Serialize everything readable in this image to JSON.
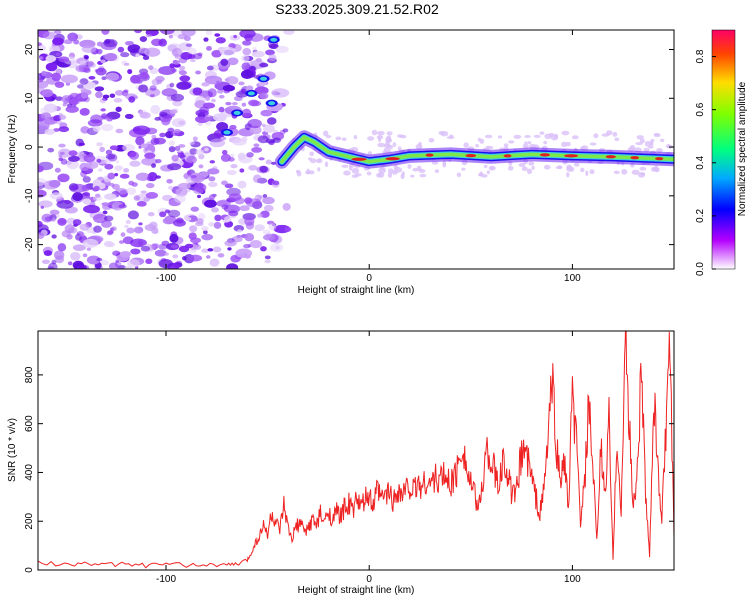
{
  "title": "S233.2025.309.21.52.R02",
  "colors": {
    "snr_line": "#ee2222",
    "axis": "#000000",
    "band_core": "#e02020",
    "band_edge": "#3fd0e0"
  },
  "chart_data": [
    {
      "type": "heatmap",
      "name": "spectrogram",
      "xlabel": "Height of straight line (km)",
      "ylabel": "Frequency (Hz)",
      "xlim": [
        -163,
        150
      ],
      "ylim": [
        -25,
        24
      ],
      "xticks": [
        -100,
        0,
        100
      ],
      "yticks": [
        -20,
        -10,
        0,
        10,
        20
      ],
      "xtick_labels": [
        "-100",
        "0",
        "100"
      ],
      "ytick_labels": [
        "-20",
        "-10",
        "0",
        "10",
        "20"
      ],
      "colorbar": {
        "label": "Normalized spectral amplitude",
        "range": [
          0.0,
          0.9
        ],
        "ticks": [
          0.0,
          0.2,
          0.4,
          0.6,
          0.8
        ],
        "tick_labels": [
          "0.0",
          "0.2",
          "0.4",
          "0.6",
          "0.8"
        ]
      },
      "band_track": {
        "x": [
          -43,
          -37,
          -32,
          -27,
          -20,
          -10,
          0,
          10,
          20,
          40,
          60,
          80,
          100,
          120,
          150
        ],
        "y": [
          -3,
          0,
          2,
          1,
          -1,
          -2,
          -3,
          -2.5,
          -1.8,
          -1.5,
          -2,
          -1.5,
          -1.8,
          -2,
          -2.5
        ]
      }
    },
    {
      "type": "line",
      "name": "snr",
      "xlabel": "Height of straight line (km)",
      "ylabel": "SNR (10 * v/v)",
      "xlim": [
        -163,
        150
      ],
      "ylim": [
        0,
        980
      ],
      "xticks": [
        -100,
        0,
        100
      ],
      "yticks": [
        0,
        200,
        400,
        600,
        800
      ],
      "xtick_labels": [
        "-100",
        "0",
        "100"
      ],
      "ytick_labels": [
        "0",
        "200",
        "400",
        "600",
        "800"
      ],
      "series": [
        {
          "name": "SNR",
          "x": [
            -163,
            -150,
            -140,
            -130,
            -120,
            -110,
            -100,
            -90,
            -80,
            -70,
            -65,
            -60,
            -58,
            -56,
            -54,
            -52,
            -50,
            -48,
            -46,
            -44,
            -42,
            -40,
            -38,
            -36,
            -34,
            -32,
            -30,
            -28,
            -26,
            -24,
            -22,
            -20,
            -18,
            -16,
            -14,
            -12,
            -10,
            -8,
            -6,
            -4,
            -2,
            0,
            2,
            4,
            6,
            8,
            10,
            12,
            14,
            16,
            18,
            20,
            22,
            24,
            26,
            28,
            30,
            32,
            34,
            36,
            38,
            40,
            42,
            44,
            46,
            48,
            50,
            52,
            54,
            56,
            58,
            60,
            62,
            64,
            66,
            68,
            70,
            72,
            74,
            76,
            78,
            80,
            82,
            84,
            86,
            88,
            90,
            92,
            94,
            96,
            98,
            100,
            102,
            104,
            106,
            108,
            110,
            112,
            114,
            116,
            118,
            120,
            122,
            124,
            126,
            128,
            130,
            132,
            134,
            136,
            138,
            140,
            142,
            144,
            146,
            148,
            150
          ],
          "y": [
            30,
            22,
            28,
            20,
            25,
            18,
            24,
            20,
            22,
            20,
            24,
            40,
            70,
            110,
            140,
            180,
            150,
            230,
            190,
            160,
            260,
            170,
            120,
            180,
            190,
            160,
            170,
            210,
            180,
            230,
            190,
            250,
            200,
            240,
            220,
            260,
            270,
            240,
            300,
            250,
            290,
            300,
            260,
            330,
            290,
            310,
            320,
            280,
            340,
            310,
            330,
            350,
            320,
            360,
            340,
            370,
            350,
            380,
            360,
            390,
            370,
            360,
            380,
            430,
            540,
            410,
            350,
            300,
            250,
            380,
            500,
            450,
            390,
            330,
            470,
            400,
            320,
            290,
            420,
            520,
            450,
            380,
            300,
            230,
            330,
            550,
            780,
            530,
            360,
            460,
            240,
            710,
            520,
            200,
            340,
            680,
            430,
            110,
            500,
            300,
            620,
            35,
            580,
            200,
            980,
            600,
            250,
            420,
            850,
            300,
            60,
            720,
            420,
            200,
            570,
            900,
            130
          ]
        }
      ]
    }
  ]
}
